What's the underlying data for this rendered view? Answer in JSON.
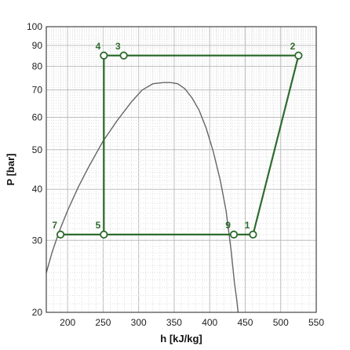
{
  "chart_data": {
    "type": "line",
    "title": "",
    "xlabel": "h [kJ/kg]",
    "ylabel": "P [bar]",
    "xlim": [
      170,
      550
    ],
    "ylim": [
      20,
      100
    ],
    "y_scale": "log",
    "grid": true,
    "x_ticks": [
      200,
      250,
      300,
      350,
      400,
      450,
      500,
      550
    ],
    "y_ticks": [
      20,
      30,
      40,
      50,
      60,
      70,
      80,
      90,
      100
    ],
    "colors": {
      "cycle": "#2e6b2e",
      "dome": "#666666",
      "grid": "#c8c8c8"
    },
    "series": [
      {
        "role": "saturation dome",
        "x": [
          170,
          178,
          188,
          200,
          215,
          230,
          250,
          270,
          290,
          305,
          320,
          335,
          345,
          355,
          365,
          375,
          385,
          395,
          405,
          415,
          423,
          430,
          435,
          438,
          440
        ],
        "y": [
          25.0,
          28.0,
          31.5,
          35.5,
          40.5,
          45.5,
          52.5,
          59.0,
          65.5,
          70.0,
          72.5,
          73.0,
          73.0,
          72.5,
          70.5,
          67.0,
          62.5,
          56.5,
          49.5,
          42.0,
          35.5,
          28.5,
          23.5,
          21.5,
          20.0
        ]
      },
      {
        "role": "cycle",
        "x": [
          461,
          525,
          279,
          251,
          251,
          190,
          251,
          434,
          461
        ],
        "y": [
          31,
          85,
          85,
          85,
          31,
          31,
          31,
          31,
          31
        ]
      }
    ],
    "points": [
      {
        "label": "1",
        "x": 461,
        "y": 31,
        "anchor": "above-left"
      },
      {
        "label": "2",
        "x": 525,
        "y": 85,
        "anchor": "above-left"
      },
      {
        "label": "3",
        "x": 279,
        "y": 85,
        "anchor": "above-left"
      },
      {
        "label": "4",
        "x": 251,
        "y": 85,
        "anchor": "above-left"
      },
      {
        "label": "5",
        "x": 251,
        "y": 31,
        "anchor": "above-left"
      },
      {
        "label": "7",
        "x": 190,
        "y": 31,
        "anchor": "above-left"
      },
      {
        "label": "9",
        "x": 434,
        "y": 31,
        "anchor": "above-left"
      }
    ]
  }
}
